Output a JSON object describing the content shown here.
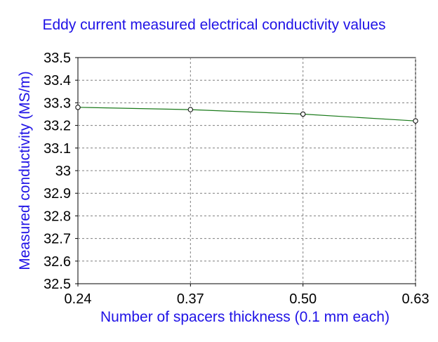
{
  "chart_data": {
    "type": "line",
    "title": "Eddy current measured electrical conductivity values",
    "xlabel": "Number of spacers thickness (0.1 mm each)",
    "ylabel": "Measured conductivity (MS/m)",
    "x": [
      0.24,
      0.37,
      0.5,
      0.63
    ],
    "x_tick_labels": [
      "0.24",
      "0.37",
      "0.50",
      "0.63"
    ],
    "xlim": [
      0.24,
      0.63
    ],
    "ylim": [
      32.5,
      33.5
    ],
    "y_ticks": [
      32.5,
      32.6,
      32.7,
      32.8,
      32.9,
      33,
      33.1,
      33.2,
      33.3,
      33.4,
      33.5
    ],
    "y_tick_labels": [
      "32.5",
      "32.6",
      "32.7",
      "32.8",
      "32.9",
      "33",
      "33.1",
      "33.2",
      "33.3",
      "33.4",
      "33.5"
    ],
    "series": [
      {
        "values": [
          33.28,
          33.27,
          33.25,
          33.22
        ],
        "color": "#1a7a1a",
        "marker": "open-circle"
      }
    ],
    "grid": true,
    "colors": {
      "title": "#1f12e6",
      "axis_labels": "#1f12e6",
      "ticks": "#000000",
      "grid": "#7f7f7f"
    }
  }
}
